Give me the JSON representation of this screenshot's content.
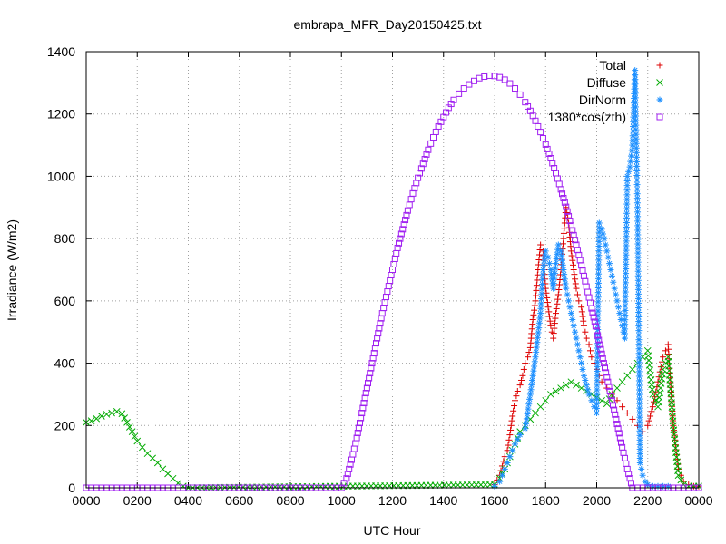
{
  "chart_data": {
    "type": "scatter",
    "title": "embrapa_MFR_Day20150425.txt",
    "xlabel": "UTC Hour",
    "ylabel": "Irradiance (W/m2)",
    "xlim": [
      0,
      24
    ],
    "ylim": [
      0,
      1400
    ],
    "x_ticks": [
      {
        "value": 0,
        "label": "0000"
      },
      {
        "value": 2,
        "label": "0200"
      },
      {
        "value": 4,
        "label": "0400"
      },
      {
        "value": 6,
        "label": "0600"
      },
      {
        "value": 8,
        "label": "0800"
      },
      {
        "value": 10,
        "label": "1000"
      },
      {
        "value": 12,
        "label": "1200"
      },
      {
        "value": 14,
        "label": "1400"
      },
      {
        "value": 16,
        "label": "1600"
      },
      {
        "value": 18,
        "label": "1800"
      },
      {
        "value": 20,
        "label": "2000"
      },
      {
        "value": 22,
        "label": "2200"
      },
      {
        "value": 24,
        "label": "0000"
      }
    ],
    "y_ticks": [
      0,
      200,
      400,
      600,
      800,
      1000,
      1200,
      1400
    ],
    "grid": true,
    "legend_position": "top-right",
    "series": [
      {
        "name": "Total",
        "marker": "plus",
        "color": "#dd0000",
        "points": [
          [
            16.0,
            10
          ],
          [
            16.2,
            40
          ],
          [
            16.4,
            100
          ],
          [
            16.5,
            120
          ],
          [
            16.6,
            170
          ],
          [
            16.7,
            230
          ],
          [
            16.8,
            280
          ],
          [
            16.9,
            310
          ],
          [
            17.0,
            330
          ],
          [
            17.1,
            360
          ],
          [
            17.2,
            400
          ],
          [
            17.3,
            420
          ],
          [
            17.4,
            450
          ],
          [
            17.5,
            540
          ],
          [
            17.6,
            600
          ],
          [
            17.7,
            700
          ],
          [
            17.8,
            780
          ],
          [
            17.9,
            760
          ],
          [
            18.0,
            640
          ],
          [
            18.1,
            580
          ],
          [
            18.2,
            520
          ],
          [
            18.3,
            480
          ],
          [
            18.4,
            560
          ],
          [
            18.5,
            620
          ],
          [
            18.6,
            700
          ],
          [
            18.7,
            800
          ],
          [
            18.8,
            900
          ],
          [
            18.9,
            850
          ],
          [
            19.0,
            760
          ],
          [
            19.1,
            700
          ],
          [
            19.2,
            640
          ],
          [
            19.3,
            600
          ],
          [
            19.4,
            580
          ],
          [
            19.5,
            520
          ],
          [
            19.6,
            480
          ],
          [
            19.7,
            460
          ],
          [
            19.8,
            420
          ],
          [
            19.9,
            400
          ],
          [
            20.0,
            380
          ],
          [
            20.2,
            340
          ],
          [
            20.4,
            320
          ],
          [
            20.6,
            300
          ],
          [
            20.8,
            280
          ],
          [
            21.0,
            260
          ],
          [
            21.2,
            240
          ],
          [
            21.4,
            220
          ],
          [
            21.6,
            200
          ],
          [
            21.8,
            180
          ],
          [
            22.0,
            200
          ],
          [
            22.2,
            260
          ],
          [
            22.4,
            340
          ],
          [
            22.6,
            420
          ],
          [
            22.8,
            460
          ],
          [
            23.0,
            200
          ],
          [
            23.2,
            60
          ],
          [
            23.4,
            20
          ],
          [
            23.6,
            10
          ],
          [
            23.8,
            5
          ],
          [
            24.0,
            5
          ]
        ]
      },
      {
        "name": "Diffuse",
        "marker": "cross",
        "color": "#00aa00",
        "points": [
          [
            0.0,
            210
          ],
          [
            0.2,
            215
          ],
          [
            0.4,
            222
          ],
          [
            0.6,
            230
          ],
          [
            0.8,
            236
          ],
          [
            1.0,
            240
          ],
          [
            1.2,
            245
          ],
          [
            1.4,
            238
          ],
          [
            1.6,
            210
          ],
          [
            1.8,
            180
          ],
          [
            2.0,
            150
          ],
          [
            2.2,
            130
          ],
          [
            2.4,
            110
          ],
          [
            2.6,
            95
          ],
          [
            2.8,
            80
          ],
          [
            3.0,
            60
          ],
          [
            3.2,
            45
          ],
          [
            3.4,
            30
          ],
          [
            3.6,
            15
          ],
          [
            3.8,
            5
          ],
          [
            4.0,
            0
          ],
          [
            16.0,
            10
          ],
          [
            16.2,
            30
          ],
          [
            16.4,
            60
          ],
          [
            16.6,
            100
          ],
          [
            16.8,
            140
          ],
          [
            17.0,
            180
          ],
          [
            17.2,
            200
          ],
          [
            17.4,
            220
          ],
          [
            17.6,
            240
          ],
          [
            17.8,
            260
          ],
          [
            18.0,
            280
          ],
          [
            18.2,
            300
          ],
          [
            18.4,
            310
          ],
          [
            18.6,
            320
          ],
          [
            18.8,
            330
          ],
          [
            19.0,
            340
          ],
          [
            19.2,
            330
          ],
          [
            19.4,
            320
          ],
          [
            19.6,
            310
          ],
          [
            19.8,
            300
          ],
          [
            20.0,
            290
          ],
          [
            20.2,
            280
          ],
          [
            20.4,
            270
          ],
          [
            20.6,
            300
          ],
          [
            20.8,
            320
          ],
          [
            21.0,
            340
          ],
          [
            21.2,
            360
          ],
          [
            21.4,
            380
          ],
          [
            21.6,
            400
          ],
          [
            21.8,
            420
          ],
          [
            22.0,
            440
          ],
          [
            22.2,
            300
          ],
          [
            22.4,
            260
          ],
          [
            22.6,
            380
          ],
          [
            22.8,
            420
          ],
          [
            23.0,
            200
          ],
          [
            23.2,
            40
          ],
          [
            23.4,
            10
          ],
          [
            23.6,
            5
          ],
          [
            23.8,
            5
          ],
          [
            24.0,
            5
          ]
        ]
      },
      {
        "name": "DirNorm",
        "marker": "star",
        "color": "#1e90ff",
        "points": [
          [
            16.0,
            5
          ],
          [
            16.2,
            20
          ],
          [
            16.4,
            60
          ],
          [
            16.6,
            100
          ],
          [
            16.8,
            140
          ],
          [
            17.0,
            170
          ],
          [
            17.2,
            190
          ],
          [
            17.4,
            300
          ],
          [
            17.6,
            420
          ],
          [
            17.8,
            560
          ],
          [
            17.9,
            700
          ],
          [
            18.0,
            760
          ],
          [
            18.1,
            740
          ],
          [
            18.2,
            700
          ],
          [
            18.3,
            640
          ],
          [
            18.4,
            720
          ],
          [
            18.5,
            780
          ],
          [
            18.6,
            760
          ],
          [
            18.7,
            700
          ],
          [
            18.8,
            640
          ],
          [
            18.9,
            600
          ],
          [
            19.0,
            560
          ],
          [
            19.1,
            520
          ],
          [
            19.2,
            480
          ],
          [
            19.3,
            440
          ],
          [
            19.4,
            400
          ],
          [
            19.5,
            360
          ],
          [
            19.6,
            330
          ],
          [
            19.7,
            300
          ],
          [
            19.8,
            280
          ],
          [
            19.9,
            260
          ],
          [
            20.0,
            240
          ],
          [
            20.1,
            850
          ],
          [
            20.2,
            830
          ],
          [
            20.3,
            800
          ],
          [
            20.4,
            760
          ],
          [
            20.5,
            720
          ],
          [
            20.6,
            680
          ],
          [
            20.7,
            640
          ],
          [
            20.8,
            600
          ],
          [
            20.9,
            560
          ],
          [
            21.0,
            520
          ],
          [
            21.1,
            480
          ],
          [
            21.2,
            1000
          ],
          [
            21.3,
            1030
          ],
          [
            21.4,
            1100
          ],
          [
            21.5,
            1340
          ],
          [
            21.6,
            900
          ],
          [
            21.7,
            80
          ],
          [
            21.8,
            40
          ],
          [
            21.9,
            20
          ],
          [
            22.0,
            10
          ],
          [
            22.2,
            5
          ],
          [
            22.4,
            5
          ],
          [
            22.6,
            5
          ],
          [
            22.8,
            5
          ]
        ]
      },
      {
        "name": "1380*cos(zth)",
        "marker": "square",
        "color": "#a020f0",
        "points": [
          [
            0,
            0
          ],
          [
            1,
            0
          ],
          [
            2,
            0
          ],
          [
            3,
            0
          ],
          [
            4,
            0
          ],
          [
            5,
            0
          ],
          [
            6,
            0
          ],
          [
            7,
            0
          ],
          [
            8,
            0
          ],
          [
            9,
            0
          ],
          [
            10,
            0
          ],
          [
            10.2,
            30
          ],
          [
            10.4,
            90
          ],
          [
            10.6,
            160
          ],
          [
            10.8,
            240
          ],
          [
            11.0,
            320
          ],
          [
            11.2,
            400
          ],
          [
            11.4,
            480
          ],
          [
            11.6,
            560
          ],
          [
            11.8,
            630
          ],
          [
            12.0,
            700
          ],
          [
            12.2,
            770
          ],
          [
            12.4,
            830
          ],
          [
            12.6,
            890
          ],
          [
            12.8,
            945
          ],
          [
            13.0,
            995
          ],
          [
            13.2,
            1040
          ],
          [
            13.4,
            1085
          ],
          [
            13.6,
            1125
          ],
          [
            13.8,
            1160
          ],
          [
            14.0,
            1190
          ],
          [
            14.2,
            1220
          ],
          [
            14.4,
            1245
          ],
          [
            14.6,
            1265
          ],
          [
            14.8,
            1282
          ],
          [
            15.0,
            1295
          ],
          [
            15.2,
            1306
          ],
          [
            15.4,
            1315
          ],
          [
            15.6,
            1320
          ],
          [
            15.8,
            1323
          ],
          [
            16.0,
            1322
          ],
          [
            16.2,
            1318
          ],
          [
            16.4,
            1310
          ],
          [
            16.6,
            1298
          ],
          [
            16.8,
            1282
          ],
          [
            17.0,
            1262
          ],
          [
            17.2,
            1238
          ],
          [
            17.4,
            1210
          ],
          [
            17.6,
            1178
          ],
          [
            17.8,
            1142
          ],
          [
            18.0,
            1102
          ],
          [
            18.2,
            1058
          ],
          [
            18.4,
            1010
          ],
          [
            18.6,
            958
          ],
          [
            18.8,
            902
          ],
          [
            19.0,
            842
          ],
          [
            19.2,
            780
          ],
          [
            19.4,
            714
          ],
          [
            19.6,
            646
          ],
          [
            19.8,
            576
          ],
          [
            20.0,
            504
          ],
          [
            20.2,
            430
          ],
          [
            20.4,
            355
          ],
          [
            20.6,
            280
          ],
          [
            20.8,
            205
          ],
          [
            21.0,
            130
          ],
          [
            21.2,
            60
          ],
          [
            21.4,
            0
          ],
          [
            22.0,
            0
          ],
          [
            23.0,
            0
          ],
          [
            24.0,
            0
          ]
        ]
      }
    ]
  }
}
